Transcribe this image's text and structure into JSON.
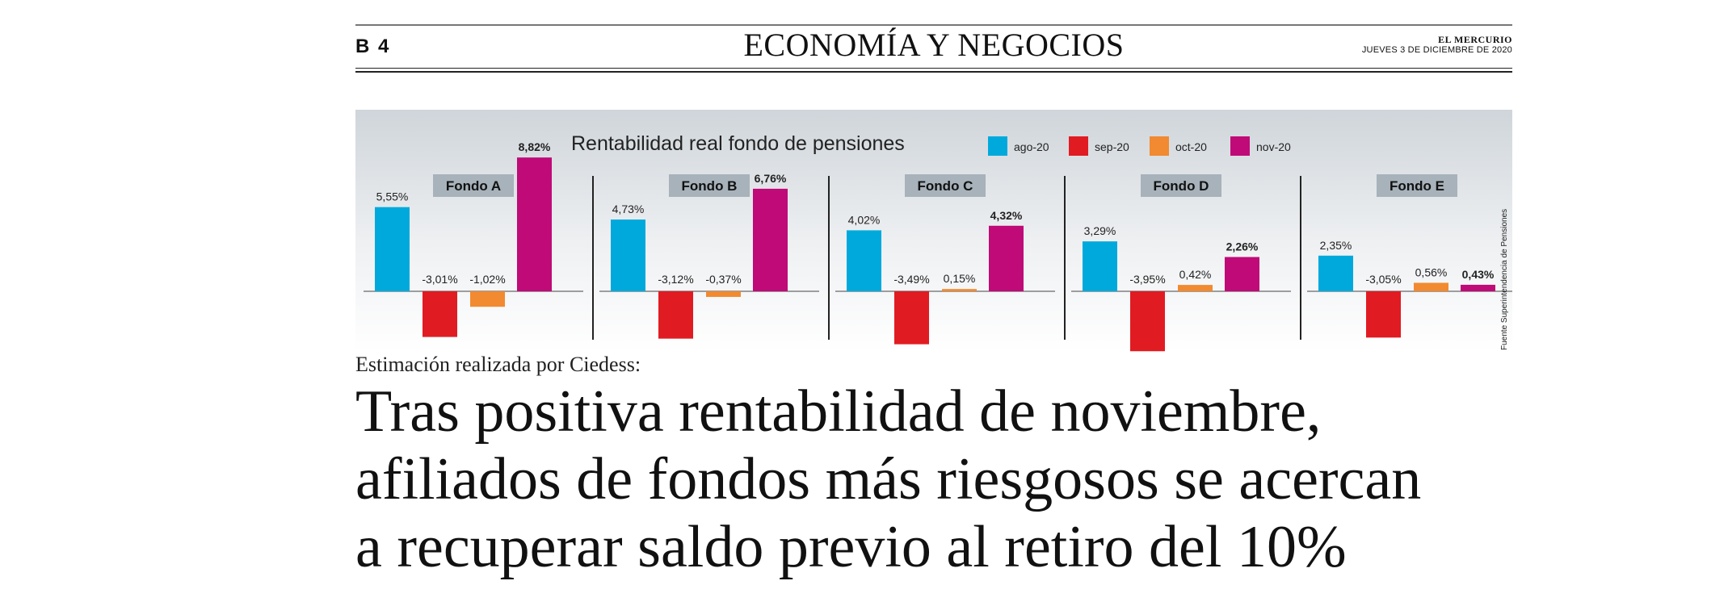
{
  "header": {
    "page_number": "B 4",
    "section": "ECONOMÍA Y NEGOCIOS",
    "publication": "EL MERCURIO",
    "date": "JUEVES 3 DE DICIEMBRE DE 2020"
  },
  "colors": {
    "ago-20": "#00a9dc",
    "sep-20": "#e11b22",
    "oct-20": "#f18a30",
    "nov-20": "#bf0a78",
    "panel_label_bg": "#a7b2ba"
  },
  "chart_data": {
    "type": "bar",
    "title": "Rentabilidad real fondo de pensiones",
    "source": "Fuente Superintendencia de Pensiones",
    "legend_position": "top-right",
    "series_names": [
      "ago-20",
      "sep-20",
      "oct-20",
      "nov-20"
    ],
    "unit": "%",
    "panels": [
      {
        "name": "Fondo A",
        "values": [
          5.55,
          -3.01,
          -1.02,
          8.82
        ],
        "labels": [
          "5,55%",
          "-3,01%",
          "-1,02%",
          "8,82%"
        ]
      },
      {
        "name": "Fondo B",
        "values": [
          4.73,
          -3.12,
          -0.37,
          6.76
        ],
        "labels": [
          "4,73%",
          "-3,12%",
          "-0,37%",
          "6,76%"
        ]
      },
      {
        "name": "Fondo C",
        "values": [
          4.02,
          -3.49,
          0.15,
          4.32
        ],
        "labels": [
          "4,02%",
          "-3,49%",
          "0,15%",
          "4,32%"
        ]
      },
      {
        "name": "Fondo D",
        "values": [
          3.29,
          -3.95,
          0.42,
          2.26
        ],
        "labels": [
          "3,29%",
          "-3,95%",
          "0,42%",
          "2,26%"
        ]
      },
      {
        "name": "Fondo E",
        "values": [
          2.35,
          -3.05,
          0.56,
          0.43
        ],
        "labels": [
          "2,35%",
          "-3,05%",
          "0,56%",
          "0,43%"
        ]
      }
    ]
  },
  "article": {
    "kicker": "Estimación realizada por Ciedess:",
    "headline_lines": [
      "Tras positiva rentabilidad de noviembre,",
      "afiliados de fondos más riesgosos se acercan",
      "a recuperar saldo previo al retiro del 10%"
    ]
  }
}
